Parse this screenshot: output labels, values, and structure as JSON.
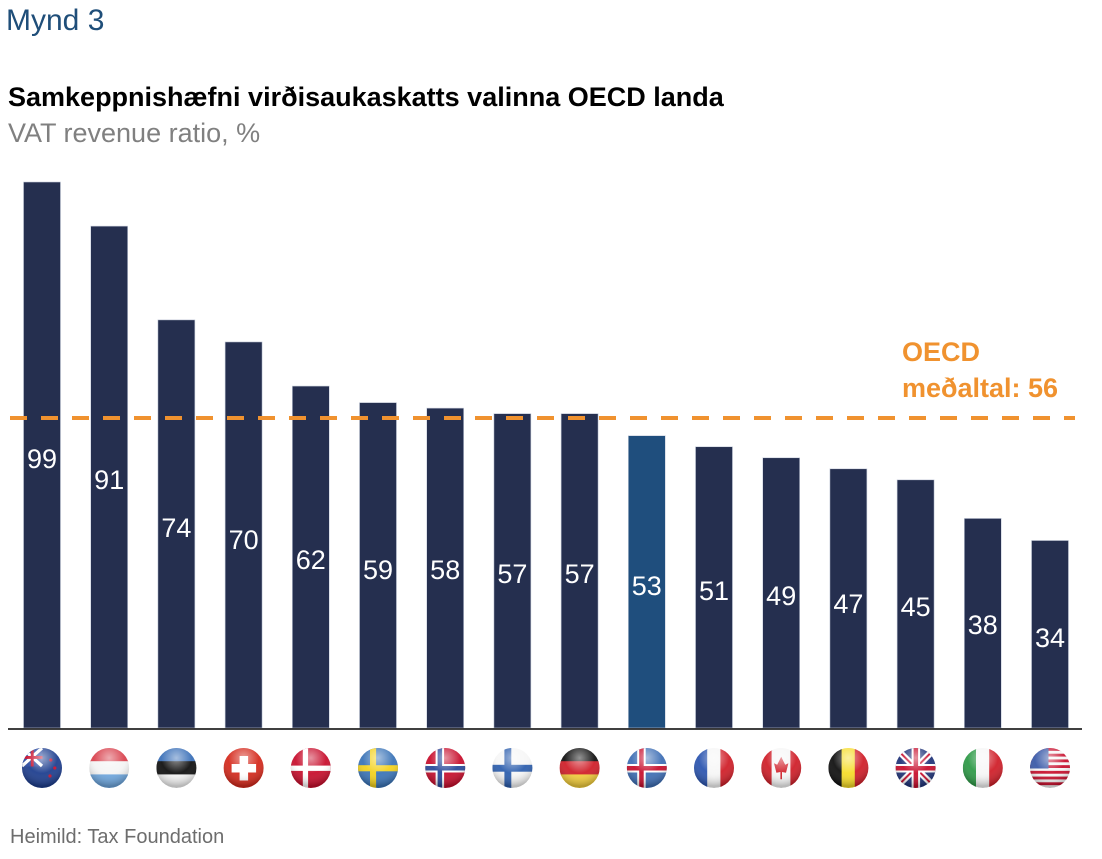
{
  "figure_label": "Mynd 3",
  "source": "Heimild: Tax Foundation",
  "colors": {
    "bar": "#252f4f",
    "highlight": "#1f4e7d",
    "average": "#f0922f",
    "label": "#ffffff"
  },
  "chart_data": {
    "type": "bar",
    "title": "Samkeppnishæfni virðisaukaskatts valinna OECD landa",
    "subtitle": "VAT revenue ratio, %",
    "xlabel": "",
    "ylabel": "",
    "ylim": [
      0,
      100
    ],
    "grid": false,
    "categories": [
      "New Zealand",
      "Luxembourg",
      "Estonia",
      "Switzerland",
      "Denmark",
      "Sweden",
      "Norway",
      "Finland",
      "Germany",
      "Iceland",
      "France",
      "Canada",
      "Belgium",
      "United Kingdom",
      "Italy",
      "United States"
    ],
    "category_icons": [
      "flag-nz-icon",
      "flag-lu-icon",
      "flag-ee-icon",
      "flag-ch-icon",
      "flag-dk-icon",
      "flag-se-icon",
      "flag-no-icon",
      "flag-fi-icon",
      "flag-de-icon",
      "flag-is-icon",
      "flag-fr-icon",
      "flag-ca-icon",
      "flag-be-icon",
      "flag-gb-icon",
      "flag-it-icon",
      "flag-us-icon"
    ],
    "values": [
      99,
      91,
      74,
      70,
      62,
      59,
      58,
      57,
      57,
      53,
      51,
      49,
      47,
      45,
      38,
      34
    ],
    "highlight_category": "Iceland",
    "reference_line": {
      "value": 56,
      "label_line1": "OECD",
      "label_line2": "meðaltal: 56"
    }
  }
}
